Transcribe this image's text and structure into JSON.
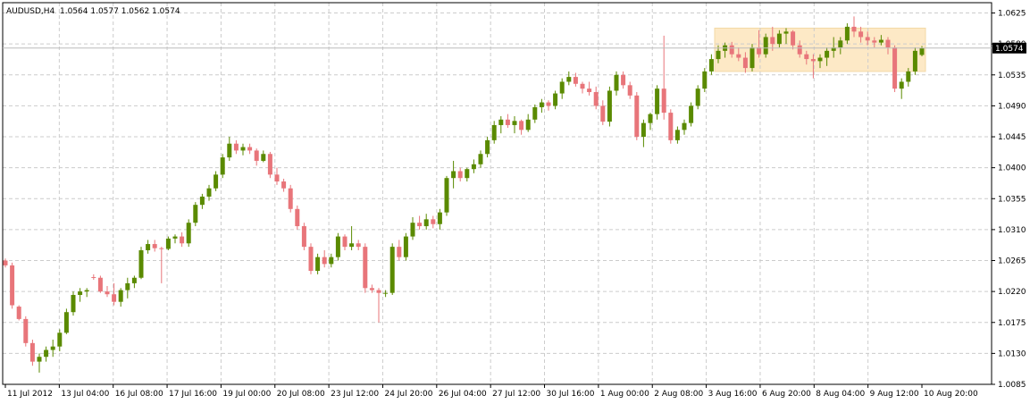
{
  "header": {
    "symbol": "AUDUSD,H4",
    "ohlc": "1.0564 1.0577 1.0562 1.0574"
  },
  "price_label": "1.0574",
  "colors": {
    "background": "#ffffff",
    "grid": "#cccccc",
    "bull": "#5a8a00",
    "bear": "#e8757a",
    "highlight": "#fde9c6",
    "axis": "#000000"
  },
  "chart_data": {
    "type": "candlestick",
    "title": "",
    "xlabel": "",
    "ylabel": "",
    "ylim": [
      1.0085,
      1.064
    ],
    "grid": true,
    "y_ticks": [
      "1.0625",
      "1.0580",
      "1.0535",
      "1.0490",
      "1.0445",
      "1.0400",
      "1.0355",
      "1.0310",
      "1.0265",
      "1.0220",
      "1.0175",
      "1.0130",
      "1.0085"
    ],
    "x_ticks": [
      "11 Jul 2012",
      "13 Jul 04:00",
      "16 Jul 08:00",
      "17 Jul 16:00",
      "19 Jul 00:00",
      "20 Jul 08:00",
      "23 Jul 12:00",
      "24 Jul 20:00",
      "26 Jul 04:00",
      "27 Jul 12:00",
      "30 Jul 16:00",
      "1 Aug 00:00",
      "2 Aug 08:00",
      "3 Aug 16:00",
      "6 Aug 20:00",
      "8 Aug 04:00",
      "9 Aug 12:00",
      "10 Aug 20:00"
    ],
    "candles": [
      [
        1.0265,
        1.0268,
        1.0255,
        1.0258
      ],
      [
        1.0258,
        1.0262,
        1.0195,
        1.02
      ],
      [
        1.0198,
        1.02,
        1.0178,
        1.018
      ],
      [
        1.018,
        1.0184,
        1.014,
        1.0145
      ],
      [
        1.0145,
        1.015,
        1.0112,
        1.0118
      ],
      [
        1.0118,
        1.013,
        1.0102,
        1.0125
      ],
      [
        1.0125,
        1.014,
        1.0118,
        1.0135
      ],
      [
        1.0135,
        1.015,
        1.0125,
        1.014
      ],
      [
        1.014,
        1.0165,
        1.0133,
        1.016
      ],
      [
        1.016,
        1.0195,
        1.0158,
        1.019
      ],
      [
        1.019,
        1.022,
        1.0185,
        1.0215
      ],
      [
        1.0215,
        1.0225,
        1.0205,
        1.022
      ],
      [
        1.022,
        1.0225,
        1.0212,
        1.0222
      ],
      [
        1.0241,
        1.0245,
        1.0237,
        1.024
      ],
      [
        1.024,
        1.0243,
        1.0218,
        1.022
      ],
      [
        1.022,
        1.0228,
        1.0212,
        1.0216
      ],
      [
        1.0216,
        1.0232,
        1.02,
        1.0205
      ],
      [
        1.0205,
        1.0225,
        1.0198,
        1.0222
      ],
      [
        1.0222,
        1.024,
        1.021,
        1.0232
      ],
      [
        1.0232,
        1.0243,
        1.0225,
        1.024
      ],
      [
        1.024,
        1.0285,
        1.0238,
        1.028
      ],
      [
        1.028,
        1.0295,
        1.0275,
        1.0289
      ],
      [
        1.0289,
        1.0295,
        1.0278,
        1.0283
      ],
      [
        1.0283,
        1.0285,
        1.0232,
        1.0282
      ],
      [
        1.0282,
        1.03,
        1.028,
        1.0297
      ],
      [
        1.0297,
        1.0303,
        1.029,
        1.03
      ],
      [
        1.03,
        1.0306,
        1.0285,
        1.029
      ],
      [
        1.029,
        1.0325,
        1.0285,
        1.032
      ],
      [
        1.032,
        1.035,
        1.0315,
        1.0346
      ],
      [
        1.0346,
        1.0362,
        1.034,
        1.0358
      ],
      [
        1.0358,
        1.0375,
        1.0352,
        1.037
      ],
      [
        1.037,
        1.0395,
        1.0366,
        1.039
      ],
      [
        1.039,
        1.042,
        1.0385,
        1.0415
      ],
      [
        1.0415,
        1.0445,
        1.041,
        1.0435
      ],
      [
        1.0435,
        1.044,
        1.042,
        1.0425
      ],
      [
        1.0425,
        1.0435,
        1.0418,
        1.043
      ],
      [
        1.043,
        1.0435,
        1.042,
        1.0425
      ],
      [
        1.0425,
        1.0428,
        1.0403,
        1.041
      ],
      [
        1.041,
        1.0425,
        1.0408,
        1.042
      ],
      [
        1.042,
        1.0423,
        1.0385,
        1.039
      ],
      [
        1.039,
        1.04,
        1.0375,
        1.038
      ],
      [
        1.038,
        1.0384,
        1.0365,
        1.037
      ],
      [
        1.037,
        1.0375,
        1.0335,
        1.034
      ],
      [
        1.034,
        1.0345,
        1.031,
        1.0315
      ],
      [
        1.0315,
        1.032,
        1.028,
        1.0285
      ],
      [
        1.0285,
        1.029,
        1.0245,
        1.025
      ],
      [
        1.025,
        1.0275,
        1.0245,
        1.027
      ],
      [
        1.027,
        1.028,
        1.0255,
        1.026
      ],
      [
        1.026,
        1.0275,
        1.0255,
        1.027
      ],
      [
        1.027,
        1.0305,
        1.0265,
        1.03
      ],
      [
        1.03,
        1.0303,
        1.028,
        1.0285
      ],
      [
        1.0285,
        1.0315,
        1.028,
        1.029
      ],
      [
        1.029,
        1.0295,
        1.028,
        1.0285
      ],
      [
        1.0285,
        1.029,
        1.0218,
        1.0225
      ],
      [
        1.0225,
        1.023,
        1.0218,
        1.0222
      ],
      [
        1.0222,
        1.0225,
        1.0175,
        1.0218
      ],
      [
        1.0218,
        1.0222,
        1.0212,
        1.0218
      ],
      [
        1.0218,
        1.029,
        1.0215,
        1.0285
      ],
      [
        1.0285,
        1.0295,
        1.0265,
        1.027
      ],
      [
        1.027,
        1.0305,
        1.0265,
        1.03
      ],
      [
        1.03,
        1.0328,
        1.0295,
        1.032
      ],
      [
        1.032,
        1.033,
        1.031,
        1.0315
      ],
      [
        1.0315,
        1.0333,
        1.031,
        1.0325
      ],
      [
        1.0325,
        1.033,
        1.0312,
        1.0318
      ],
      [
        1.0318,
        1.034,
        1.031,
        1.0335
      ],
      [
        1.0335,
        1.0388,
        1.033,
        1.0385
      ],
      [
        1.0385,
        1.041,
        1.037,
        1.0395
      ],
      [
        1.0395,
        1.04,
        1.038,
        1.0385
      ],
      [
        1.0385,
        1.04,
        1.038,
        1.0398
      ],
      [
        1.0398,
        1.0412,
        1.0392,
        1.0405
      ],
      [
        1.0405,
        1.0425,
        1.04,
        1.042
      ],
      [
        1.042,
        1.0445,
        1.0415,
        1.044
      ],
      [
        1.044,
        1.0468,
        1.0435,
        1.0462
      ],
      [
        1.0462,
        1.0475,
        1.045,
        1.047
      ],
      [
        1.047,
        1.0478,
        1.0458,
        1.0462
      ],
      [
        1.0462,
        1.0475,
        1.045,
        1.0468
      ],
      [
        1.0468,
        1.047,
        1.0448,
        1.0455
      ],
      [
        1.0455,
        1.0478,
        1.0452,
        1.047
      ],
      [
        1.047,
        1.0492,
        1.0465,
        1.0488
      ],
      [
        1.0488,
        1.05,
        1.048,
        1.0495
      ],
      [
        1.0495,
        1.0498,
        1.0483,
        1.049
      ],
      [
        1.049,
        1.0512,
        1.0485,
        1.0508
      ],
      [
        1.0508,
        1.053,
        1.05,
        1.0525
      ],
      [
        1.0525,
        1.054,
        1.052,
        1.0532
      ],
      [
        1.0532,
        1.0538,
        1.0518,
        1.0522
      ],
      [
        1.0522,
        1.0525,
        1.0508,
        1.0515
      ],
      [
        1.0515,
        1.0525,
        1.0505,
        1.051
      ],
      [
        1.051,
        1.0518,
        1.0485,
        1.049
      ],
      [
        1.049,
        1.0498,
        1.0462,
        1.0467
      ],
      [
        1.0467,
        1.0518,
        1.046,
        1.0512
      ],
      [
        1.0512,
        1.054,
        1.0505,
        1.0535
      ],
      [
        1.0535,
        1.054,
        1.0515,
        1.052
      ],
      [
        1.052,
        1.0525,
        1.05,
        1.0505
      ],
      [
        1.0505,
        1.051,
        1.044,
        1.0445
      ],
      [
        1.0445,
        1.047,
        1.043,
        1.0465
      ],
      [
        1.0465,
        1.048,
        1.0455,
        1.0478
      ],
      [
        1.0478,
        1.052,
        1.047,
        1.0515
      ],
      [
        1.0515,
        1.0592,
        1.047,
        1.048
      ],
      [
        1.048,
        1.0485,
        1.0435,
        1.044
      ],
      [
        1.044,
        1.046,
        1.0435,
        1.0455
      ],
      [
        1.0455,
        1.047,
        1.0448,
        1.0465
      ],
      [
        1.0465,
        1.0495,
        1.046,
        1.049
      ],
      [
        1.049,
        1.052,
        1.0485,
        1.0515
      ],
      [
        1.0515,
        1.0545,
        1.051,
        1.054
      ],
      [
        1.054,
        1.0565,
        1.0535,
        1.0558
      ],
      [
        1.0558,
        1.0578,
        1.0552,
        1.057
      ],
      [
        1.057,
        1.0582,
        1.056,
        1.0578
      ],
      [
        1.0578,
        1.0583,
        1.056,
        1.0565
      ],
      [
        1.0565,
        1.0575,
        1.0555,
        1.056
      ],
      [
        1.056,
        1.0568,
        1.0538,
        1.0545
      ],
      [
        1.0545,
        1.058,
        1.054,
        1.0575
      ],
      [
        1.0575,
        1.06,
        1.056,
        1.0565
      ],
      [
        1.0565,
        1.0595,
        1.056,
        1.059
      ],
      [
        1.059,
        1.0605,
        1.057,
        1.058
      ],
      [
        1.058,
        1.06,
        1.0575,
        1.0595
      ],
      [
        1.0595,
        1.0603,
        1.058,
        1.0598
      ],
      [
        1.0598,
        1.06,
        1.0572,
        1.0578
      ],
      [
        1.0578,
        1.0585,
        1.056,
        1.0565
      ],
      [
        1.0565,
        1.057,
        1.055,
        1.0558
      ],
      [
        1.0558,
        1.0565,
        1.053,
        1.0555
      ],
      [
        1.0555,
        1.0565,
        1.0545,
        1.056
      ],
      [
        1.056,
        1.0575,
        1.0548,
        1.057
      ],
      [
        1.057,
        1.059,
        1.056,
        1.0575
      ],
      [
        1.0575,
        1.059,
        1.0565,
        1.0585
      ],
      [
        1.0585,
        1.061,
        1.058,
        1.0605
      ],
      [
        1.0605,
        1.062,
        1.059,
        1.0598
      ],
      [
        1.0598,
        1.0605,
        1.0582,
        1.059
      ],
      [
        1.059,
        1.0598,
        1.0578,
        1.0585
      ],
      [
        1.0585,
        1.059,
        1.0575,
        1.0582
      ],
      [
        1.0582,
        1.0593,
        1.0578,
        1.0586
      ],
      [
        1.0586,
        1.059,
        1.0565,
        1.0575
      ],
      [
        1.0575,
        1.0578,
        1.051,
        1.0515
      ],
      [
        1.0515,
        1.053,
        1.05,
        1.0525
      ],
      [
        1.0525,
        1.0545,
        1.0518,
        1.054
      ],
      [
        1.054,
        1.0575,
        1.0535,
        1.057
      ],
      [
        1.0564,
        1.0577,
        1.0562,
        1.0574
      ]
    ],
    "highlight_zone": {
      "from_index": 105,
      "to_index": 135,
      "y_low": 1.054,
      "y_high": 1.0603
    }
  }
}
